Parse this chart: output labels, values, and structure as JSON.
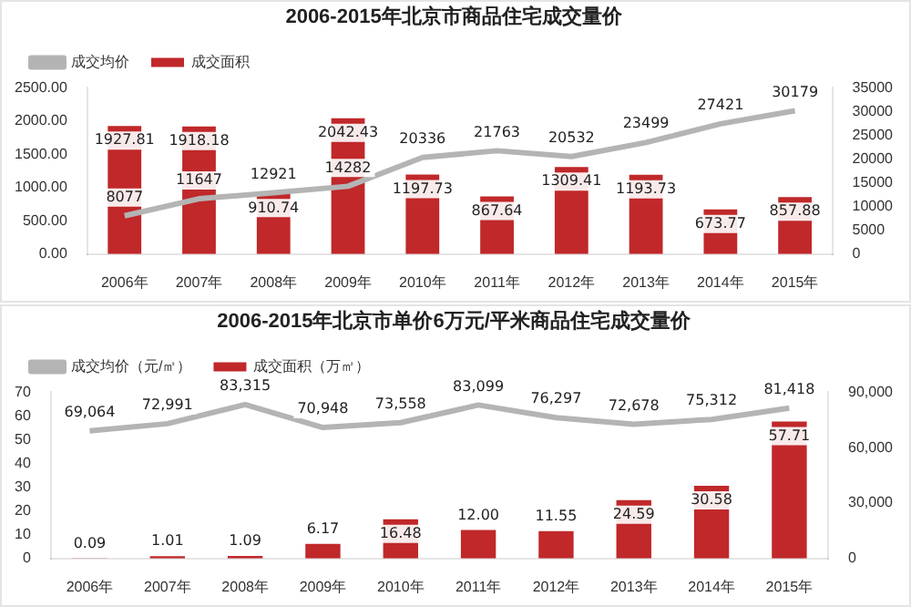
{
  "chart_data": [
    {
      "type": "bar",
      "title": "2006-2015年北京市商品住宅成交量价",
      "categories": [
        "2006年",
        "2007年",
        "2008年",
        "2009年",
        "2010年",
        "2011年",
        "2012年",
        "2013年",
        "2014年",
        "2015年"
      ],
      "legend": "top left",
      "data_labels": true,
      "grid": false,
      "series": [
        {
          "name": "成交面积",
          "color": "#c0282a",
          "values": [
            1927.81,
            1918.18,
            910.74,
            2042.43,
            1197.73,
            867.64,
            1309.41,
            1193.73,
            673.77,
            857.88
          ],
          "value_labels": [
            "1927.81",
            "1918.18",
            "910.74",
            "2042.43",
            "1197.73",
            "867.64",
            "1309.41",
            "1193.73",
            "673.77",
            "857.88"
          ]
        },
        {
          "name": "成交均价",
          "type": "line",
          "axis": "y2",
          "color": "#b4b4b4",
          "values": [
            8077,
            11647,
            12921,
            14282,
            20336,
            21763,
            20532,
            23499,
            27421,
            30179
          ]
        }
      ],
      "ylim": [
        0,
        2500
      ],
      "yticks": [
        {
          "value": 0,
          "label": "0.00"
        },
        {
          "value": 500,
          "label": "500.00"
        },
        {
          "value": 1000,
          "label": "1000.00"
        },
        {
          "value": 1500,
          "label": "1500.00"
        },
        {
          "value": 2000,
          "label": "2000.00"
        },
        {
          "value": 2500,
          "label": "2500.00"
        }
      ],
      "y2lim": [
        0,
        35000
      ],
      "y2ticks": [
        0,
        5000,
        10000,
        15000,
        20000,
        25000,
        30000,
        35000
      ]
    },
    {
      "type": "bar",
      "title": "2006-2015年北京市单价6万元/平米商品住宅成交量价",
      "categories": [
        "2006年",
        "2007年",
        "2008年",
        "2009年",
        "2010年",
        "2011年",
        "2012年",
        "2013年",
        "2014年",
        "2015年"
      ],
      "legend": "top left",
      "grid": false,
      "series": [
        {
          "name": "成交面积（万㎡）",
          "color": "#c0282a",
          "values": [
            0.09,
            1.01,
            1.09,
            6.17,
            16.48,
            12.0,
            11.55,
            24.59,
            30.58,
            57.71
          ],
          "value_labels": [
            "0.09",
            "1.01",
            "1.09",
            "6.17",
            "16.48",
            "12.00",
            "11.55",
            "24.59",
            "30.58",
            "57.71"
          ]
        },
        {
          "name": "成交均价（元/㎡）",
          "type": "line",
          "axis": "y2",
          "color": "#b4b4b4",
          "values": [
            69064,
            72991,
            83315,
            70948,
            73558,
            83099,
            76297,
            72678,
            75312,
            81418
          ],
          "value_labels": [
            "69,064",
            "72,991",
            "83,315",
            "70,948",
            "73,558",
            "83,099",
            "76,297",
            "72,678",
            "75,312",
            "81,418"
          ]
        }
      ],
      "ylim": [
        0,
        70
      ],
      "yticks": [
        0,
        10,
        20,
        30,
        40,
        50,
        60,
        70
      ],
      "y2lim": [
        0,
        90000
      ],
      "y2ticks": [
        0,
        {
          "value": 30000,
          "label": "30,000"
        },
        {
          "value": 60000,
          "label": "60,000"
        },
        {
          "value": 90000,
          "label": "90,000"
        }
      ]
    }
  ]
}
